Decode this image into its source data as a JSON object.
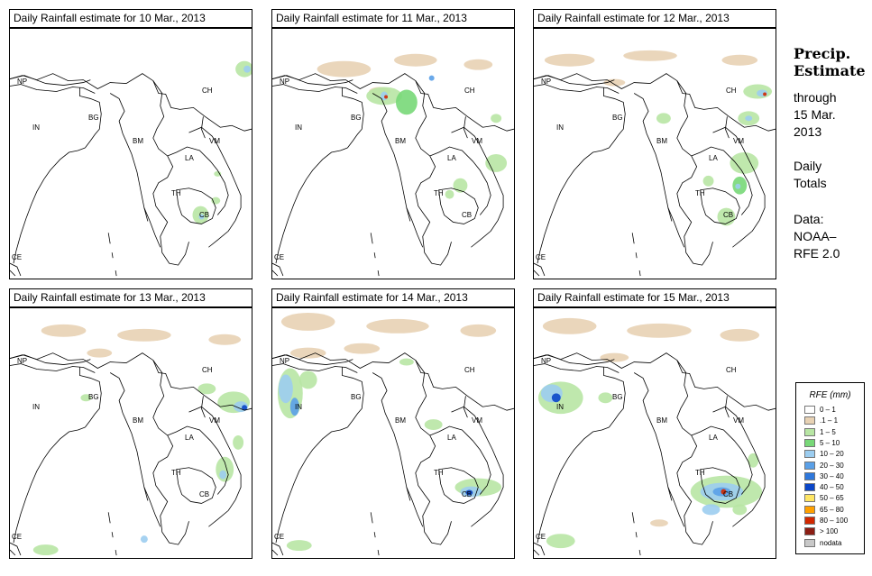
{
  "header": {
    "heading_line1": "Precip.",
    "heading_line2": "Estimate",
    "through_word": "through",
    "through_date": "15 Mar.",
    "through_year": "2013",
    "totals_line1": "Daily",
    "totals_line2": "Totals",
    "source_line1": "Data:",
    "source_line2": "NOAA–",
    "source_line3": "RFE 2.0"
  },
  "map_labels": {
    "np": "NP",
    "in": "IN",
    "bg": "BG",
    "ch": "CH",
    "bm": "BM",
    "vm": "VM",
    "la": "LA",
    "th": "TH",
    "cb": "CB",
    "ce": "CE"
  },
  "panels": [
    {
      "title": "Daily Rainfall estimate for  10 Mar., 2013"
    },
    {
      "title": "Daily Rainfall estimate for  11 Mar., 2013"
    },
    {
      "title": "Daily Rainfall estimate for  12 Mar., 2013"
    },
    {
      "title": "Daily Rainfall estimate for  13 Mar., 2013"
    },
    {
      "title": "Daily Rainfall estimate for  14 Mar., 2013"
    },
    {
      "title": "Daily Rainfall estimate for  15 Mar., 2013"
    }
  ],
  "legend": {
    "title": "RFE (mm)",
    "items": [
      {
        "label": "0 – 1",
        "color": "#ffffff"
      },
      {
        "label": ".1 – 1",
        "color": "#e8d2b4"
      },
      {
        "label": "1 – 5",
        "color": "#b8e6a4"
      },
      {
        "label": "5 – 10",
        "color": "#78d878"
      },
      {
        "label": "10 – 20",
        "color": "#9ccdf0"
      },
      {
        "label": "20 – 30",
        "color": "#5aa0e8"
      },
      {
        "label": "30 – 40",
        "color": "#2e78dc"
      },
      {
        "label": "40 – 50",
        "color": "#0a46c8"
      },
      {
        "label": "50 – 65",
        "color": "#ffe664"
      },
      {
        "label": "65 – 80",
        "color": "#ffa000"
      },
      {
        "label": "80 – 100",
        "color": "#d22800"
      },
      {
        "label": "> 100",
        "color": "#8c1e14"
      },
      {
        "label": "nodata",
        "color": "#c8c8c8"
      }
    ]
  }
}
